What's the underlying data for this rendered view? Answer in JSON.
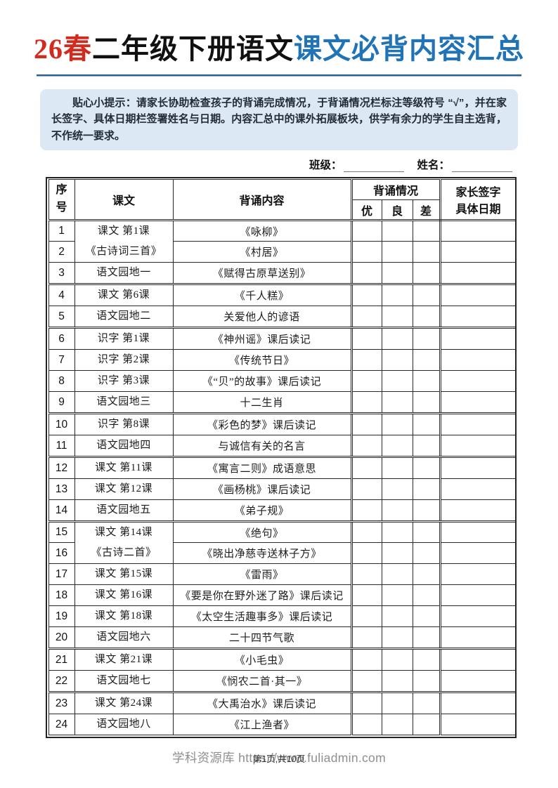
{
  "colors": {
    "accent_red": "#d42a1d",
    "accent_blue": "#1f73b6",
    "rule_blue": "#2b5f94",
    "tip_bg": "#dce8f4",
    "border_dark": "#232323",
    "watermark_gray": "#8f8f8f"
  },
  "title": {
    "part_red": "26春",
    "part_black": "二年级下册语文",
    "part_blue": "课文必背内容汇总"
  },
  "tip": {
    "label": "贴心小提示：",
    "text": "请家长协助检查孩子的背诵完成情况，于背诵情况栏标注等级符号 “√”，并在家长签字、具体日期栏签署姓名与日期。内容汇总中的课外拓展板块，供学有余力的学生自主选背，不作统一要求。"
  },
  "fields": {
    "class_label": "班级：",
    "name_label": "姓名："
  },
  "table": {
    "headers": {
      "col_num": "序号",
      "col_lesson": "课文",
      "col_content": "背诵内容",
      "col_status": "背诵情况",
      "sub_you": "优",
      "sub_liang": "良",
      "sub_cha": "差",
      "col_sign_line1": "家长签字",
      "col_sign_line2": "具体日期"
    },
    "rows": [
      {
        "num": "1",
        "lesson": [
          "课文 第1课",
          "《古诗词三首》"
        ],
        "lesson_rowspan": 2,
        "content": "《咏柳》"
      },
      {
        "num": "2",
        "content": "《村居》"
      },
      {
        "num": "3",
        "lesson": [
          "语文园地一"
        ],
        "content": "《赋得古原草送别》",
        "group_end": true
      },
      {
        "num": "4",
        "lesson": [
          "课文 第6课"
        ],
        "content": "《千人糕》"
      },
      {
        "num": "5",
        "lesson": [
          "语文园地二"
        ],
        "content": "关爱他人的谚语",
        "group_end": true
      },
      {
        "num": "6",
        "lesson": [
          "识字 第1课"
        ],
        "content": "《神州谣》课后读记"
      },
      {
        "num": "7",
        "lesson": [
          "识字 第2课"
        ],
        "content": "《传统节日》"
      },
      {
        "num": "8",
        "lesson": [
          "识字 第3课"
        ],
        "content": "《“贝”的故事》课后读记"
      },
      {
        "num": "9",
        "lesson": [
          "语文园地三"
        ],
        "content": "十二生肖",
        "group_end": true
      },
      {
        "num": "10",
        "lesson": [
          "识字 第8课"
        ],
        "content": "《彩色的梦》课后读记"
      },
      {
        "num": "11",
        "lesson": [
          "语文园地四"
        ],
        "content": "与诚信有关的名言",
        "group_end": true
      },
      {
        "num": "12",
        "lesson": [
          "课文 第11课"
        ],
        "content": "《寓言二则》成语意思"
      },
      {
        "num": "13",
        "lesson": [
          "课文 第12课"
        ],
        "content": "《画杨桃》课后读记"
      },
      {
        "num": "14",
        "lesson": [
          "语文园地五"
        ],
        "content": "《弟子规》",
        "group_end": true
      },
      {
        "num": "15",
        "lesson": [
          "课文 第14课",
          "《古诗二首》"
        ],
        "lesson_rowspan": 2,
        "content": "《绝句》"
      },
      {
        "num": "16",
        "content": "《晓出净慈寺送林子方》"
      },
      {
        "num": "17",
        "lesson": [
          "课文 第15课"
        ],
        "content": "《雷雨》"
      },
      {
        "num": "18",
        "lesson": [
          "课文 第16课"
        ],
        "content": "《要是你在野外迷了路》课后读记"
      },
      {
        "num": "19",
        "lesson": [
          "课文 第18课"
        ],
        "content": "《太空生活趣事多》课后读记"
      },
      {
        "num": "20",
        "lesson": [
          "语文园地六"
        ],
        "content": "二十四节气歌",
        "group_end": true
      },
      {
        "num": "21",
        "lesson": [
          "课文 第21课"
        ],
        "content": "《小毛虫》"
      },
      {
        "num": "22",
        "lesson": [
          "语文园地七"
        ],
        "content": "《悯农二首·其一》",
        "group_end": true
      },
      {
        "num": "23",
        "lesson": [
          "课文 第24课"
        ],
        "content": "《大禹治水》课后读记"
      },
      {
        "num": "24",
        "lesson": [
          "语文园地八"
        ],
        "content": "《江上渔者》"
      }
    ]
  },
  "footer": {
    "watermark": "学科资源库 https://www.fuliadmin.com",
    "page_info": "第1页,共10页"
  }
}
